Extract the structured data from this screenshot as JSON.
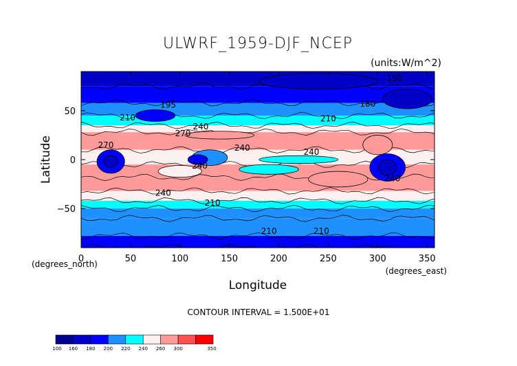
{
  "chart_data": {
    "type": "heatmap",
    "title": "ULWRF_1959-DJF_NCEP",
    "units": "(units:W/m^2)",
    "xlabel": "Longitude",
    "ylabel": "Latitude",
    "x_unit_note": "(degrees_east)",
    "y_unit_note": "(degrees_north)",
    "xlim": [
      0,
      357.5
    ],
    "ylim": [
      -90,
      90
    ],
    "x_ticks": [
      0,
      50,
      100,
      150,
      200,
      250,
      300,
      350
    ],
    "y_ticks": [
      -50,
      0,
      50
    ],
    "contour_interval": "CONTOUR INTERVAL = 1.500E+01",
    "colorbar": {
      "levels": [
        100,
        160,
        180,
        200,
        220,
        240,
        260,
        300,
        350
      ],
      "colors": [
        "#00008f",
        "#0000c8",
        "#0000ff",
        "#1e90ff",
        "#00ffff",
        "#fff0f0",
        "#ff9a9a",
        "#ff5050",
        "#ff0000"
      ]
    },
    "contour_labels": [
      {
        "text": "195",
        "lon": 88,
        "lat": 53
      },
      {
        "text": "210",
        "lon": 47,
        "lat": 40
      },
      {
        "text": "240",
        "lon": 121,
        "lat": 31
      },
      {
        "text": "270",
        "lon": 103,
        "lat": 24
      },
      {
        "text": "270",
        "lon": 25,
        "lat": 12
      },
      {
        "text": "240",
        "lon": 163,
        "lat": 9
      },
      {
        "text": "240",
        "lon": 120,
        "lat": -9
      },
      {
        "text": "240",
        "lon": 233,
        "lat": 5
      },
      {
        "text": "240",
        "lon": 83,
        "lat": -37
      },
      {
        "text": "210",
        "lon": 133,
        "lat": -47
      },
      {
        "text": "210",
        "lon": 250,
        "lat": 39
      },
      {
        "text": "180",
        "lon": 290,
        "lat": 54
      },
      {
        "text": "210",
        "lon": 190,
        "lat": -76
      },
      {
        "text": "210",
        "lon": 243,
        "lat": -76
      },
      {
        "text": "240",
        "lon": 315,
        "lat": -22
      },
      {
        "text": "150",
        "lon": 317,
        "lat": 80
      }
    ],
    "bands": [
      {
        "lat_from": 90,
        "lat_to": 75,
        "value": 165
      },
      {
        "lat_from": 75,
        "lat_to": 58,
        "value": 185
      },
      {
        "lat_from": 58,
        "lat_to": 45,
        "value": 205
      },
      {
        "lat_from": 45,
        "lat_to": 35,
        "value": 230
      },
      {
        "lat_from": 35,
        "lat_to": 28,
        "value": 250
      },
      {
        "lat_from": 28,
        "lat_to": 10,
        "value": 275
      },
      {
        "lat_from": 10,
        "lat_to": -5,
        "value": 250
      },
      {
        "lat_from": -5,
        "lat_to": -18,
        "value": 262
      },
      {
        "lat_from": -18,
        "lat_to": -32,
        "value": 275
      },
      {
        "lat_from": -32,
        "lat_to": -42,
        "value": 250
      },
      {
        "lat_from": -42,
        "lat_to": -50,
        "value": 230
      },
      {
        "lat_from": -50,
        "lat_to": -60,
        "value": 212
      },
      {
        "lat_from": -60,
        "lat_to": -78,
        "value": 200
      },
      {
        "lat_from": -78,
        "lat_to": -90,
        "value": 182
      }
    ],
    "patches": [
      {
        "lon": 30,
        "lat": -2,
        "rlon": 14,
        "rlat": 12,
        "value": 190
      },
      {
        "lon": 30,
        "lat": -2,
        "rlon": 7,
        "rlat": 6,
        "value": 170
      },
      {
        "lon": 310,
        "lat": -8,
        "rlon": 18,
        "rlat": 14,
        "value": 190
      },
      {
        "lon": 310,
        "lat": -8,
        "rlon": 9,
        "rlat": 8,
        "value": 170
      },
      {
        "lon": 130,
        "lat": 2,
        "rlon": 18,
        "rlat": 8,
        "value": 205
      },
      {
        "lon": 118,
        "lat": 0,
        "rlon": 10,
        "rlat": 5,
        "value": 185
      },
      {
        "lon": 220,
        "lat": 0,
        "rlon": 40,
        "rlat": 4,
        "value": 230
      },
      {
        "lon": 100,
        "lat": -12,
        "rlon": 22,
        "rlat": 6,
        "value": 250
      },
      {
        "lon": 190,
        "lat": -10,
        "rlon": 30,
        "rlat": 5,
        "value": 230
      },
      {
        "lon": 75,
        "lat": 45,
        "rlon": 20,
        "rlat": 6,
        "value": 195
      },
      {
        "lon": 300,
        "lat": 15,
        "rlon": 15,
        "rlat": 10,
        "value": 275
      },
      {
        "lon": 330,
        "lat": 62,
        "rlon": 25,
        "rlat": 10,
        "value": 160
      },
      {
        "lon": 260,
        "lat": -20,
        "rlon": 30,
        "rlat": 8,
        "value": 290
      },
      {
        "lon": 140,
        "lat": 25,
        "rlon": 35,
        "rlat": 4,
        "value": 295
      },
      {
        "lon": 240,
        "lat": 80,
        "rlon": 60,
        "rlat": 8,
        "value": 165
      }
    ]
  }
}
